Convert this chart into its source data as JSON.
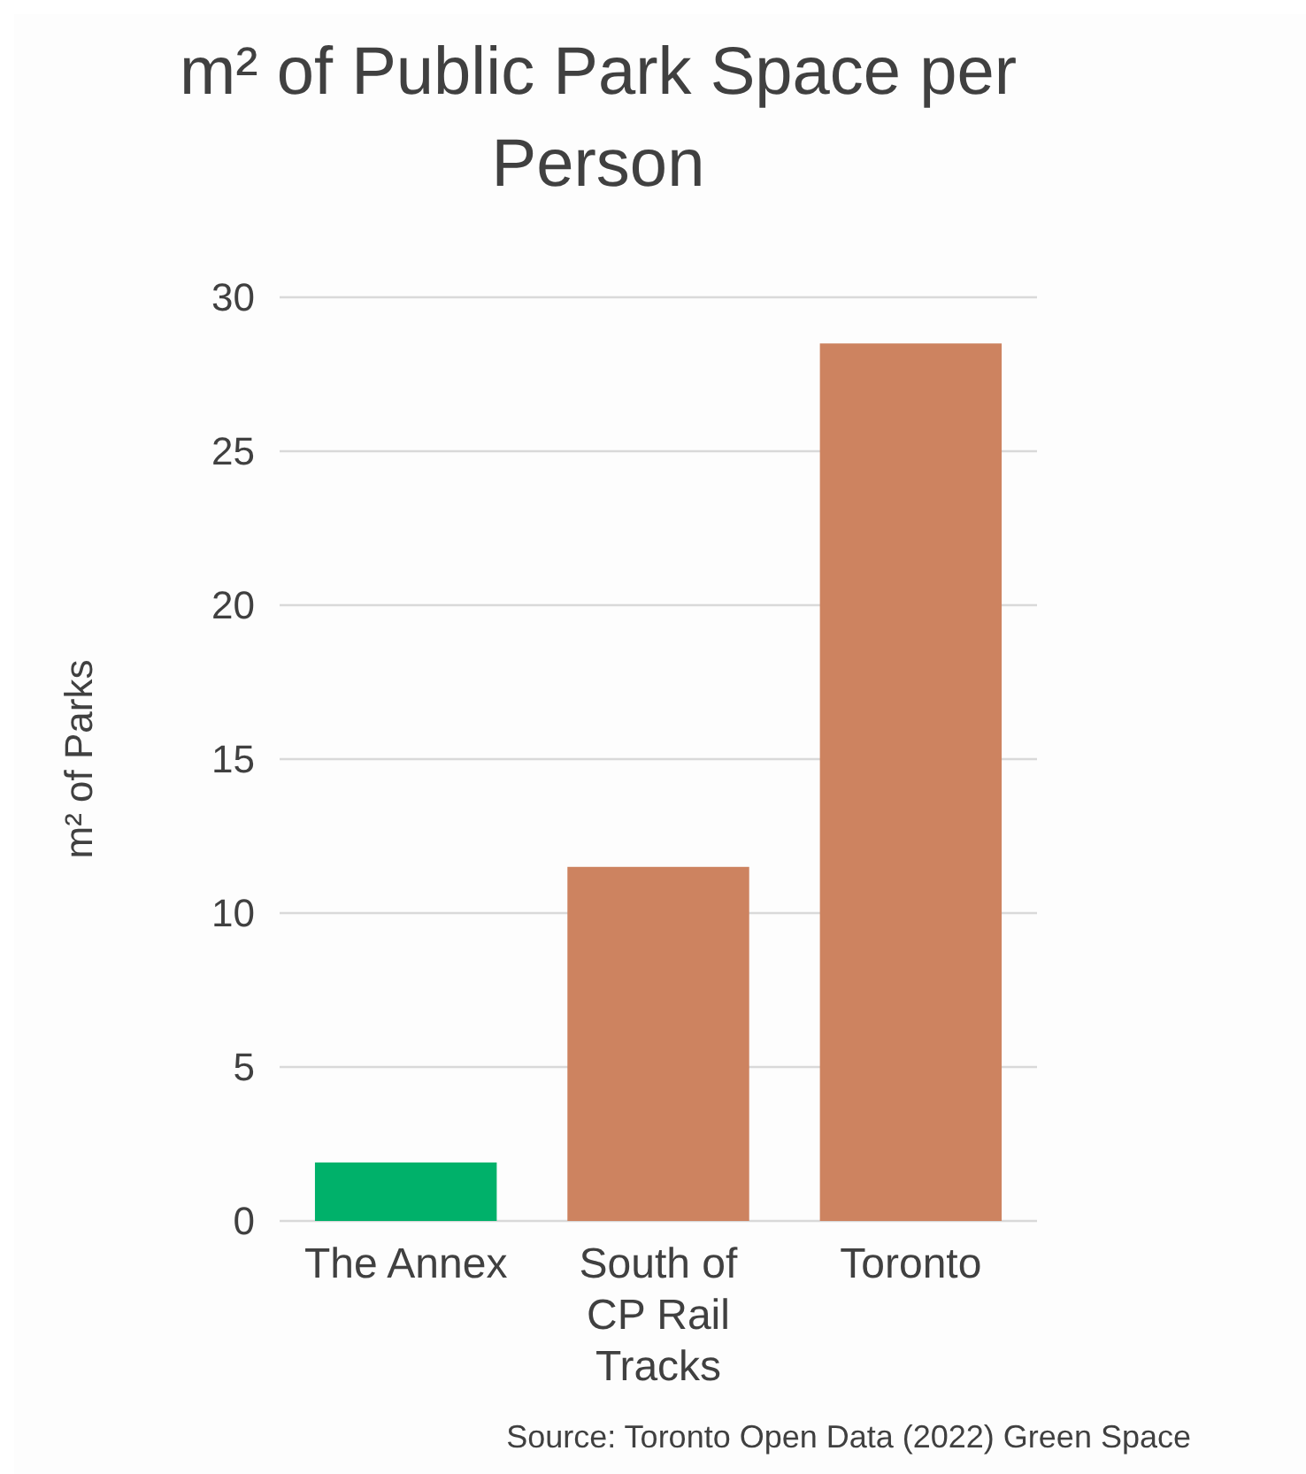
{
  "chart_data": {
    "type": "bar",
    "title": "m² of Public Park Space per Person",
    "ylabel": "m² of Parks",
    "categories": [
      "The Annex",
      "South of CP Rail Tracks",
      "Toronto"
    ],
    "values": [
      1.9,
      11.5,
      28.5
    ],
    "colors": [
      "#00b16a",
      "#cd8360",
      "#cd8360"
    ],
    "ylim": [
      0,
      30
    ],
    "yticks": [
      0,
      5,
      10,
      15,
      20,
      25,
      30
    ],
    "grid": "y",
    "annotations": [
      "Source: Toronto Open Data (2022) Green Space"
    ]
  }
}
